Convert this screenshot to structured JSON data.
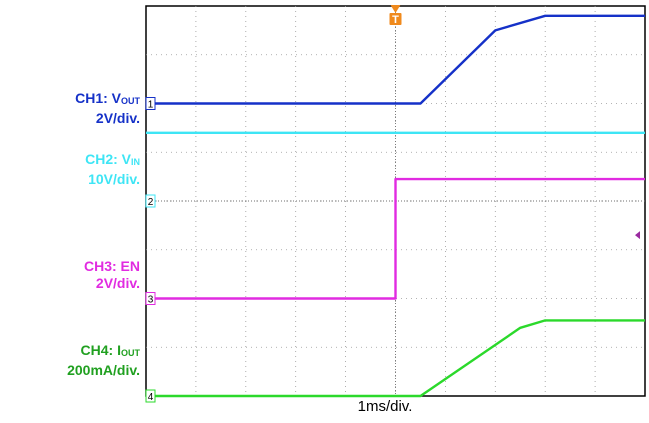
{
  "chart_data": {
    "type": "line",
    "x_units": "divisions",
    "y_units": "divisions",
    "xlim": [
      0,
      10
    ],
    "ylim": [
      0,
      8
    ],
    "grid": true,
    "xlabel": "1ms/div.",
    "trigger_marker": "T",
    "series": [
      {
        "name": "CH1",
        "label_main": "CH1: V",
        "label_sub": "OUT",
        "scale": "2V/div.",
        "marker": "1",
        "color": "#1531c8",
        "ref_level": 6,
        "x": [
          0,
          5.5,
          7.0,
          8.0,
          10
        ],
        "y": [
          6.0,
          6.0,
          7.5,
          7.8,
          7.8
        ]
      },
      {
        "name": "CH2",
        "label_main": "CH2: V",
        "label_sub": "IN",
        "scale": "10V/div.",
        "marker": "2",
        "color": "#3ee5f5",
        "ref_level": 4,
        "x": [
          0,
          10
        ],
        "y": [
          5.4,
          5.4
        ]
      },
      {
        "name": "CH3",
        "label_main": "CH3: EN",
        "label_sub": "",
        "scale": "2V/div.",
        "marker": "3",
        "color": "#e12be1",
        "ref_level": 2,
        "x": [
          0,
          5.0,
          5.0,
          10
        ],
        "y": [
          2.0,
          2.0,
          4.45,
          4.45
        ]
      },
      {
        "name": "CH4",
        "label_main": "CH4: I",
        "label_sub": "OUT",
        "scale": "200mA/div.",
        "marker": "4",
        "color": "#2bd92b",
        "ref_level": 0,
        "x": [
          0,
          5.5,
          7.5,
          8.0,
          10
        ],
        "y": [
          0.0,
          0.0,
          1.4,
          1.55,
          1.55
        ]
      }
    ]
  }
}
